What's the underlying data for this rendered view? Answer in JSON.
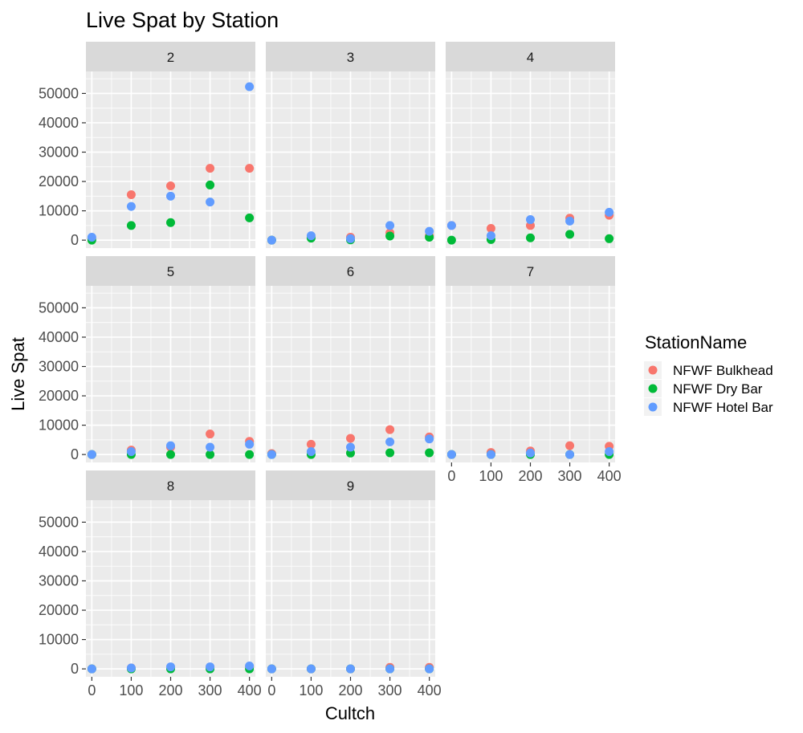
{
  "chart_data": {
    "type": "scatter",
    "title": "Live Spat by Station",
    "xlabel": "Cultch",
    "ylabel": "Live Spat",
    "x_ticks": [
      0,
      100,
      200,
      300,
      400
    ],
    "y_ticks": [
      0,
      10000,
      20000,
      30000,
      40000,
      50000
    ],
    "xlim": [
      -15,
      415
    ],
    "ylim": [
      -2700,
      57500
    ],
    "grid": true,
    "legend": {
      "title": "StationName",
      "placement": "right",
      "entries": [
        "NFWF Bulkhead",
        "NFWF Dry Bar",
        "NFWF Hotel Bar"
      ]
    },
    "colors": {
      "NFWF Bulkhead": "#f8766d",
      "NFWF Dry Bar": "#00ba38",
      "NFWF Hotel Bar": "#619cff"
    },
    "facets": [
      {
        "label": "2",
        "series": [
          {
            "name": "NFWF Bulkhead",
            "x": [
              0,
              100,
              200,
              300,
              400
            ],
            "y": [
              500,
              15500,
              18500,
              24500,
              24500
            ]
          },
          {
            "name": "NFWF Dry Bar",
            "x": [
              0,
              100,
              200,
              300,
              400
            ],
            "y": [
              0,
              5000,
              6000,
              18800,
              7600
            ]
          },
          {
            "name": "NFWF Hotel Bar",
            "x": [
              0,
              100,
              200,
              300,
              400
            ],
            "y": [
              1000,
              11500,
              15000,
              13000,
              52300
            ]
          }
        ]
      },
      {
        "label": "3",
        "series": [
          {
            "name": "NFWF Bulkhead",
            "x": [
              0,
              100,
              200,
              300,
              400
            ],
            "y": [
              0,
              1000,
              1000,
              2500,
              1500
            ]
          },
          {
            "name": "NFWF Dry Bar",
            "x": [
              0,
              100,
              200,
              300,
              400
            ],
            "y": [
              0,
              700,
              100,
              1400,
              1000
            ]
          },
          {
            "name": "NFWF Hotel Bar",
            "x": [
              0,
              100,
              200,
              300,
              400
            ],
            "y": [
              0,
              1500,
              500,
              5000,
              3000
            ]
          }
        ]
      },
      {
        "label": "4",
        "series": [
          {
            "name": "NFWF Bulkhead",
            "x": [
              0,
              100,
              200,
              300,
              400
            ],
            "y": [
              5000,
              4000,
              5000,
              7500,
              8500
            ]
          },
          {
            "name": "NFWF Dry Bar",
            "x": [
              0,
              100,
              200,
              300,
              400
            ],
            "y": [
              0,
              200,
              800,
              2000,
              500
            ]
          },
          {
            "name": "NFWF Hotel Bar",
            "x": [
              0,
              100,
              200,
              300,
              400
            ],
            "y": [
              5000,
              1500,
              7000,
              6500,
              9500
            ]
          }
        ]
      },
      {
        "label": "5",
        "series": [
          {
            "name": "NFWF Bulkhead",
            "x": [
              0,
              100,
              200,
              300,
              400
            ],
            "y": [
              0,
              1500,
              2500,
              7000,
              4500
            ]
          },
          {
            "name": "NFWF Dry Bar",
            "x": [
              0,
              100,
              200,
              300,
              400
            ],
            "y": [
              0,
              0,
              0,
              0,
              0
            ]
          },
          {
            "name": "NFWF Hotel Bar",
            "x": [
              0,
              100,
              200,
              300,
              400
            ],
            "y": [
              0,
              1000,
              3000,
              2500,
              3500
            ]
          }
        ]
      },
      {
        "label": "6",
        "series": [
          {
            "name": "NFWF Bulkhead",
            "x": [
              0,
              100,
              200,
              300,
              400
            ],
            "y": [
              300,
              3500,
              5500,
              8500,
              6000
            ]
          },
          {
            "name": "NFWF Dry Bar",
            "x": [
              0,
              100,
              200,
              300,
              400
            ],
            "y": [
              0,
              0,
              500,
              600,
              600
            ]
          },
          {
            "name": "NFWF Hotel Bar",
            "x": [
              0,
              100,
              200,
              300,
              400
            ],
            "y": [
              0,
              1000,
              2500,
              4300,
              5300
            ]
          }
        ]
      },
      {
        "label": "7",
        "series": [
          {
            "name": "NFWF Bulkhead",
            "x": [
              0,
              100,
              200,
              300,
              400
            ],
            "y": [
              0,
              700,
              1200,
              3000,
              2800
            ]
          },
          {
            "name": "NFWF Dry Bar",
            "x": [
              0,
              100,
              200,
              300,
              400
            ],
            "y": [
              0,
              0,
              0,
              0,
              0
            ]
          },
          {
            "name": "NFWF Hotel Bar",
            "x": [
              0,
              100,
              200,
              300,
              400
            ],
            "y": [
              0,
              0,
              500,
              0,
              1000
            ]
          }
        ]
      },
      {
        "label": "8",
        "series": [
          {
            "name": "NFWF Bulkhead",
            "x": [
              0,
              100,
              200,
              300,
              400
            ],
            "y": [
              0,
              300,
              500,
              500,
              700
            ]
          },
          {
            "name": "NFWF Dry Bar",
            "x": [
              0,
              100,
              200,
              300,
              400
            ],
            "y": [
              0,
              0,
              0,
              0,
              0
            ]
          },
          {
            "name": "NFWF Hotel Bar",
            "x": [
              0,
              100,
              200,
              300,
              400
            ],
            "y": [
              0,
              300,
              700,
              700,
              1000
            ]
          }
        ]
      },
      {
        "label": "9",
        "series": [
          {
            "name": "NFWF Bulkhead",
            "x": [
              0,
              100,
              200,
              300,
              400
            ],
            "y": [
              0,
              0,
              0,
              500,
              500
            ]
          },
          {
            "name": "NFWF Dry Bar",
            "x": [
              0,
              100,
              200,
              300,
              400
            ],
            "y": [
              0,
              0,
              0,
              0,
              0
            ]
          },
          {
            "name": "NFWF Hotel Bar",
            "x": [
              0,
              100,
              200,
              300,
              400
            ],
            "y": [
              0,
              0,
              0,
              0,
              0
            ]
          }
        ]
      }
    ]
  }
}
